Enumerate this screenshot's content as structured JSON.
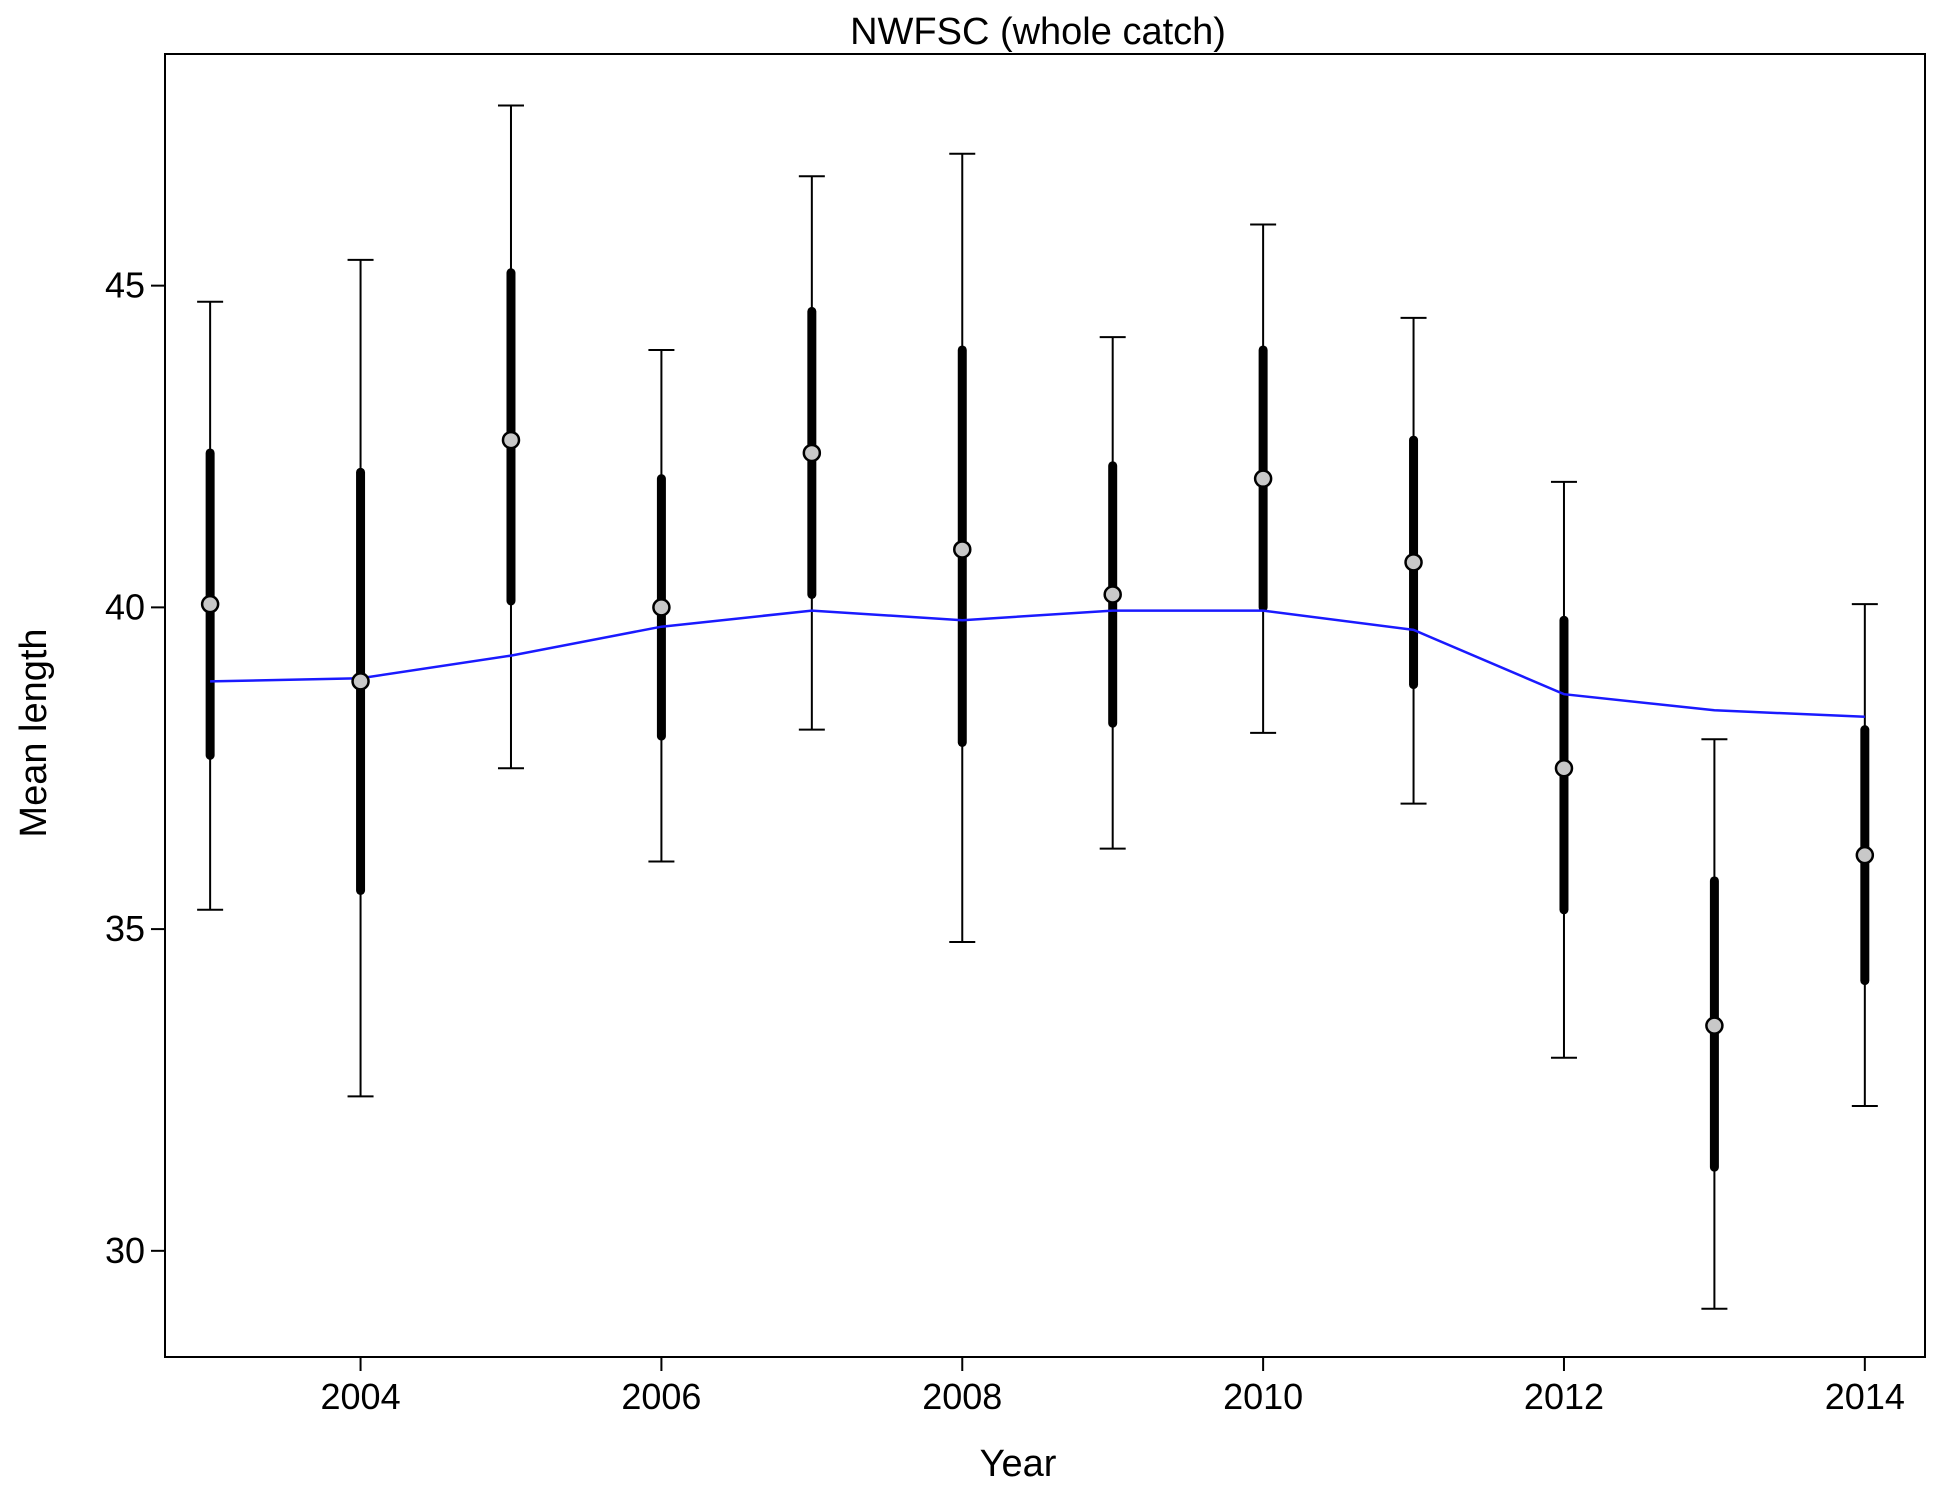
{
  "chart_data": {
    "type": "line",
    "title": "NWFSC (whole catch)",
    "xlabel": "Year",
    "ylabel": "Mean length",
    "xlim": [
      2002.7,
      2014.4
    ],
    "ylim": [
      28.35,
      48.6
    ],
    "x_ticks": [
      2004,
      2006,
      2008,
      2010,
      2012,
      2014
    ],
    "y_ticks": [
      30,
      35,
      40,
      45
    ],
    "grid": false,
    "legend": "none",
    "colors": {
      "expected_line": "#1a1aff",
      "observed_point_fill": "#c8c8c8",
      "interval": "#000000"
    },
    "observed": {
      "x": [
        2003,
        2004,
        2005,
        2006,
        2007,
        2008,
        2009,
        2010,
        2011,
        2012,
        2013,
        2014
      ],
      "mean": [
        40.05,
        38.85,
        42.6,
        40.0,
        42.4,
        40.9,
        40.2,
        42.0,
        40.7,
        37.5,
        33.5,
        36.15
      ],
      "inner_lower": [
        37.7,
        35.6,
        40.1,
        38.0,
        40.2,
        37.9,
        38.2,
        40.0,
        38.8,
        35.3,
        31.3,
        34.2
      ],
      "inner_upper": [
        42.4,
        42.1,
        45.2,
        42.0,
        44.6,
        44.0,
        42.2,
        44.0,
        42.6,
        39.8,
        35.75,
        38.1
      ],
      "outer_lower": [
        35.3,
        32.4,
        37.5,
        36.05,
        38.1,
        34.8,
        36.25,
        38.05,
        36.95,
        33.0,
        29.1,
        32.25
      ],
      "outer_upper": [
        44.75,
        45.4,
        47.8,
        44.0,
        46.7,
        47.05,
        44.2,
        45.95,
        44.5,
        41.95,
        37.95,
        40.05
      ]
    },
    "expected": {
      "x": [
        2003,
        2004,
        2005,
        2006,
        2007,
        2008,
        2009,
        2010,
        2011,
        2012,
        2013,
        2014
      ],
      "y": [
        38.85,
        38.9,
        39.25,
        39.7,
        39.95,
        39.8,
        39.95,
        39.95,
        39.65,
        38.65,
        38.4,
        38.3
      ]
    }
  }
}
